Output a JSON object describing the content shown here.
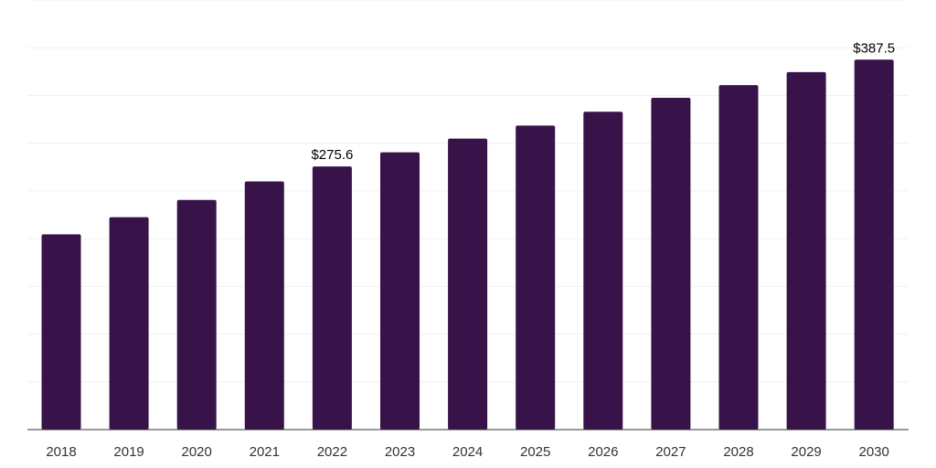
{
  "chart_data": {
    "type": "bar",
    "categories": [
      "2018",
      "2019",
      "2020",
      "2021",
      "2022",
      "2023",
      "2024",
      "2025",
      "2026",
      "2027",
      "2028",
      "2029",
      "2030"
    ],
    "values": [
      204.5,
      222.5,
      240.5,
      260.0,
      275.6,
      290.5,
      304.8,
      318.5,
      333.0,
      347.5,
      360.8,
      374.5,
      387.5
    ],
    "data_labels": [
      {
        "category": "2022",
        "text": "$275.6"
      },
      {
        "category": "2030",
        "text": "$387.5"
      }
    ],
    "ylim": [
      0,
      450
    ],
    "grid": true,
    "bar_color": "#371349",
    "legend": "none"
  }
}
